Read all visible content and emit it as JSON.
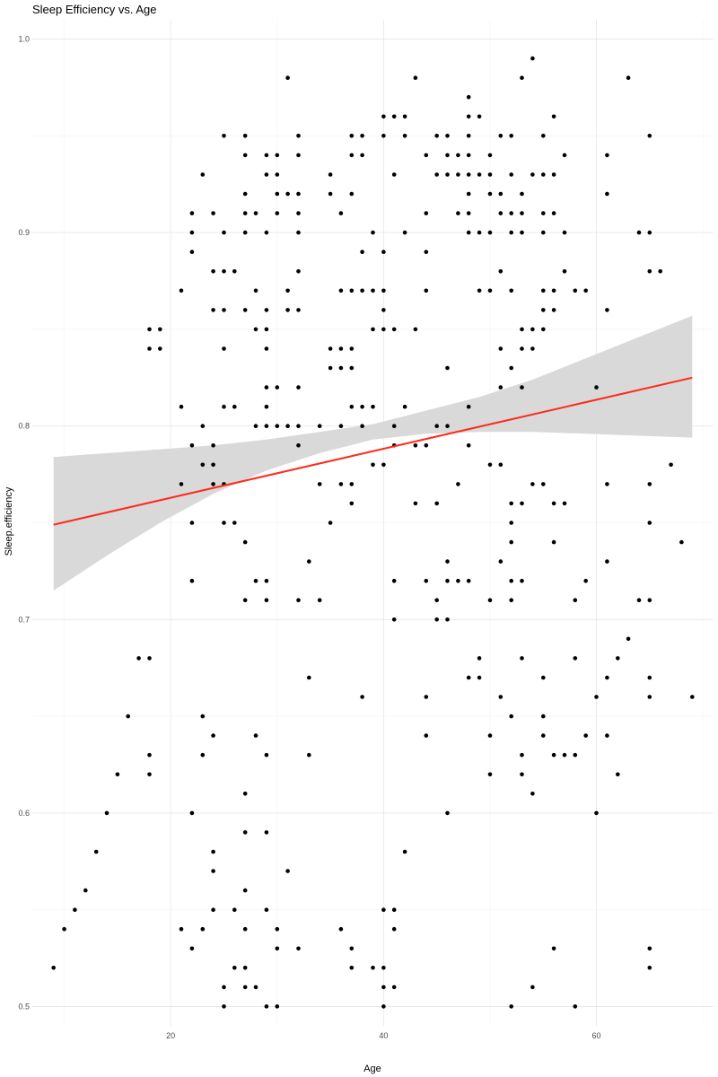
{
  "chart_data": {
    "type": "scatter",
    "title": "Sleep Efficiency vs. Age",
    "xlabel": "Age",
    "ylabel": "Sleep.efficiency",
    "xlim": [
      7.0,
      71.0
    ],
    "ylim": [
      0.49,
      1.01
    ],
    "x_ticks": [
      20,
      40,
      60
    ],
    "y_ticks": [
      0.5,
      0.6,
      0.7,
      0.8,
      0.9,
      1.0
    ],
    "x_tick_labels": [
      "20",
      "40",
      "60"
    ],
    "y_tick_labels": [
      "0.5",
      "0.6",
      "0.7",
      "0.8",
      "0.9",
      "1.0"
    ],
    "grid": true,
    "legend": "none",
    "colors": {
      "points": "#000000",
      "trend": "#ff2a1a",
      "band": "#d9d9d9"
    },
    "trend_line": {
      "type": "linear",
      "x": [
        9,
        69
      ],
      "y": [
        0.749,
        0.825
      ]
    },
    "confidence_band": {
      "x": [
        9,
        14,
        19,
        24,
        29,
        34,
        39,
        44,
        49,
        54,
        59,
        64,
        69
      ],
      "lower": [
        0.715,
        0.733,
        0.75,
        0.765,
        0.777,
        0.786,
        0.793,
        0.796,
        0.797,
        0.797,
        0.796,
        0.795,
        0.794
      ],
      "upper": [
        0.784,
        0.786,
        0.788,
        0.79,
        0.793,
        0.797,
        0.801,
        0.808,
        0.815,
        0.824,
        0.835,
        0.846,
        0.857
      ]
    },
    "points": [
      [
        9,
        0.52
      ],
      [
        10,
        0.54
      ],
      [
        11,
        0.55
      ],
      [
        12,
        0.56
      ],
      [
        13,
        0.58
      ],
      [
        14,
        0.6
      ],
      [
        15,
        0.62
      ],
      [
        16,
        0.65
      ],
      [
        17,
        0.68
      ],
      [
        18,
        0.68
      ],
      [
        18,
        0.63
      ],
      [
        18,
        0.62
      ],
      [
        18,
        0.84
      ],
      [
        18,
        0.85
      ],
      [
        19,
        0.84
      ],
      [
        19,
        0.85
      ],
      [
        21,
        0.87
      ],
      [
        21,
        0.81
      ],
      [
        21,
        0.77
      ],
      [
        21,
        0.54
      ],
      [
        22,
        0.91
      ],
      [
        22,
        0.9
      ],
      [
        22,
        0.89
      ],
      [
        22,
        0.79
      ],
      [
        22,
        0.75
      ],
      [
        22,
        0.72
      ],
      [
        22,
        0.6
      ],
      [
        22,
        0.53
      ],
      [
        23,
        0.93
      ],
      [
        23,
        0.8
      ],
      [
        23,
        0.78
      ],
      [
        23,
        0.65
      ],
      [
        23,
        0.63
      ],
      [
        23,
        0.54
      ],
      [
        24,
        0.91
      ],
      [
        24,
        0.88
      ],
      [
        24,
        0.86
      ],
      [
        24,
        0.79
      ],
      [
        24,
        0.78
      ],
      [
        24,
        0.77
      ],
      [
        24,
        0.64
      ],
      [
        24,
        0.58
      ],
      [
        24,
        0.57
      ],
      [
        24,
        0.55
      ],
      [
        25,
        0.95
      ],
      [
        25,
        0.9
      ],
      [
        25,
        0.88
      ],
      [
        25,
        0.86
      ],
      [
        25,
        0.84
      ],
      [
        25,
        0.81
      ],
      [
        25,
        0.77
      ],
      [
        25,
        0.75
      ],
      [
        25,
        0.51
      ],
      [
        25,
        0.5
      ],
      [
        26,
        0.88
      ],
      [
        26,
        0.81
      ],
      [
        26,
        0.75
      ],
      [
        26,
        0.55
      ],
      [
        26,
        0.52
      ],
      [
        27,
        0.95
      ],
      [
        27,
        0.94
      ],
      [
        27,
        0.92
      ],
      [
        27,
        0.91
      ],
      [
        27,
        0.9
      ],
      [
        27,
        0.86
      ],
      [
        27,
        0.74
      ],
      [
        27,
        0.71
      ],
      [
        27,
        0.61
      ],
      [
        27,
        0.59
      ],
      [
        27,
        0.56
      ],
      [
        27,
        0.54
      ],
      [
        27,
        0.52
      ],
      [
        27,
        0.51
      ],
      [
        28,
        0.91
      ],
      [
        28,
        0.87
      ],
      [
        28,
        0.85
      ],
      [
        28,
        0.8
      ],
      [
        28,
        0.72
      ],
      [
        28,
        0.64
      ],
      [
        28,
        0.51
      ],
      [
        29,
        0.94
      ],
      [
        29,
        0.93
      ],
      [
        29,
        0.9
      ],
      [
        29,
        0.86
      ],
      [
        29,
        0.85
      ],
      [
        29,
        0.84
      ],
      [
        29,
        0.82
      ],
      [
        29,
        0.81
      ],
      [
        29,
        0.8
      ],
      [
        29,
        0.72
      ],
      [
        29,
        0.71
      ],
      [
        29,
        0.63
      ],
      [
        29,
        0.59
      ],
      [
        29,
        0.55
      ],
      [
        29,
        0.5
      ],
      [
        30,
        0.94
      ],
      [
        30,
        0.93
      ],
      [
        30,
        0.92
      ],
      [
        30,
        0.91
      ],
      [
        30,
        0.82
      ],
      [
        30,
        0.8
      ],
      [
        30,
        0.54
      ],
      [
        30,
        0.53
      ],
      [
        30,
        0.5
      ],
      [
        31,
        0.98
      ],
      [
        31,
        0.92
      ],
      [
        31,
        0.87
      ],
      [
        31,
        0.86
      ],
      [
        31,
        0.8
      ],
      [
        31,
        0.57
      ],
      [
        32,
        0.95
      ],
      [
        32,
        0.94
      ],
      [
        32,
        0.92
      ],
      [
        32,
        0.91
      ],
      [
        32,
        0.9
      ],
      [
        32,
        0.88
      ],
      [
        32,
        0.86
      ],
      [
        32,
        0.82
      ],
      [
        32,
        0.8
      ],
      [
        32,
        0.79
      ],
      [
        32,
        0.71
      ],
      [
        32,
        0.53
      ],
      [
        33,
        0.73
      ],
      [
        33,
        0.67
      ],
      [
        33,
        0.63
      ],
      [
        34,
        0.8
      ],
      [
        34,
        0.77
      ],
      [
        34,
        0.71
      ],
      [
        35,
        0.93
      ],
      [
        35,
        0.92
      ],
      [
        35,
        0.84
      ],
      [
        35,
        0.83
      ],
      [
        35,
        0.75
      ],
      [
        36,
        0.91
      ],
      [
        36,
        0.87
      ],
      [
        36,
        0.84
      ],
      [
        36,
        0.83
      ],
      [
        36,
        0.8
      ],
      [
        36,
        0.77
      ],
      [
        36,
        0.54
      ],
      [
        37,
        0.95
      ],
      [
        37,
        0.94
      ],
      [
        37,
        0.92
      ],
      [
        37,
        0.87
      ],
      [
        37,
        0.84
      ],
      [
        37,
        0.83
      ],
      [
        37,
        0.81
      ],
      [
        37,
        0.77
      ],
      [
        37,
        0.76
      ],
      [
        37,
        0.53
      ],
      [
        37,
        0.52
      ],
      [
        38,
        0.95
      ],
      [
        38,
        0.94
      ],
      [
        38,
        0.89
      ],
      [
        38,
        0.87
      ],
      [
        38,
        0.81
      ],
      [
        38,
        0.8
      ],
      [
        38,
        0.66
      ],
      [
        39,
        0.9
      ],
      [
        39,
        0.87
      ],
      [
        39,
        0.85
      ],
      [
        39,
        0.81
      ],
      [
        39,
        0.78
      ],
      [
        39,
        0.52
      ],
      [
        40,
        0.96
      ],
      [
        40,
        0.95
      ],
      [
        40,
        0.89
      ],
      [
        40,
        0.87
      ],
      [
        40,
        0.86
      ],
      [
        40,
        0.85
      ],
      [
        40,
        0.78
      ],
      [
        40,
        0.55
      ],
      [
        40,
        0.52
      ],
      [
        40,
        0.51
      ],
      [
        40,
        0.5
      ],
      [
        41,
        0.96
      ],
      [
        41,
        0.93
      ],
      [
        41,
        0.85
      ],
      [
        41,
        0.8
      ],
      [
        41,
        0.79
      ],
      [
        41,
        0.72
      ],
      [
        41,
        0.7
      ],
      [
        41,
        0.55
      ],
      [
        41,
        0.54
      ],
      [
        41,
        0.51
      ],
      [
        42,
        0.96
      ],
      [
        42,
        0.95
      ],
      [
        42,
        0.9
      ],
      [
        42,
        0.81
      ],
      [
        42,
        0.58
      ],
      [
        43,
        0.98
      ],
      [
        43,
        0.85
      ],
      [
        43,
        0.79
      ],
      [
        43,
        0.76
      ],
      [
        44,
        0.94
      ],
      [
        44,
        0.91
      ],
      [
        44,
        0.89
      ],
      [
        44,
        0.87
      ],
      [
        44,
        0.79
      ],
      [
        44,
        0.72
      ],
      [
        44,
        0.66
      ],
      [
        44,
        0.64
      ],
      [
        45,
        0.95
      ],
      [
        45,
        0.93
      ],
      [
        45,
        0.8
      ],
      [
        45,
        0.76
      ],
      [
        45,
        0.71
      ],
      [
        45,
        0.7
      ],
      [
        46,
        0.95
      ],
      [
        46,
        0.94
      ],
      [
        46,
        0.93
      ],
      [
        46,
        0.83
      ],
      [
        46,
        0.8
      ],
      [
        46,
        0.73
      ],
      [
        46,
        0.72
      ],
      [
        46,
        0.7
      ],
      [
        46,
        0.6
      ],
      [
        47,
        0.94
      ],
      [
        47,
        0.93
      ],
      [
        47,
        0.91
      ],
      [
        47,
        0.77
      ],
      [
        47,
        0.72
      ],
      [
        48,
        0.97
      ],
      [
        48,
        0.96
      ],
      [
        48,
        0.95
      ],
      [
        48,
        0.94
      ],
      [
        48,
        0.93
      ],
      [
        48,
        0.92
      ],
      [
        48,
        0.91
      ],
      [
        48,
        0.9
      ],
      [
        48,
        0.81
      ],
      [
        48,
        0.79
      ],
      [
        48,
        0.72
      ],
      [
        48,
        0.67
      ],
      [
        49,
        0.96
      ],
      [
        49,
        0.93
      ],
      [
        49,
        0.9
      ],
      [
        49,
        0.87
      ],
      [
        49,
        0.68
      ],
      [
        49,
        0.67
      ],
      [
        50,
        0.94
      ],
      [
        50,
        0.93
      ],
      [
        50,
        0.92
      ],
      [
        50,
        0.9
      ],
      [
        50,
        0.87
      ],
      [
        50,
        0.78
      ],
      [
        50,
        0.71
      ],
      [
        50,
        0.64
      ],
      [
        50,
        0.62
      ],
      [
        51,
        0.95
      ],
      [
        51,
        0.92
      ],
      [
        51,
        0.91
      ],
      [
        51,
        0.88
      ],
      [
        51,
        0.84
      ],
      [
        51,
        0.82
      ],
      [
        51,
        0.78
      ],
      [
        51,
        0.73
      ],
      [
        51,
        0.66
      ],
      [
        52,
        0.95
      ],
      [
        52,
        0.93
      ],
      [
        52,
        0.91
      ],
      [
        52,
        0.9
      ],
      [
        52,
        0.87
      ],
      [
        52,
        0.83
      ],
      [
        52,
        0.76
      ],
      [
        52,
        0.75
      ],
      [
        52,
        0.74
      ],
      [
        52,
        0.72
      ],
      [
        52,
        0.71
      ],
      [
        52,
        0.65
      ],
      [
        52,
        0.5
      ],
      [
        53,
        0.98
      ],
      [
        53,
        0.92
      ],
      [
        53,
        0.91
      ],
      [
        53,
        0.9
      ],
      [
        53,
        0.85
      ],
      [
        53,
        0.84
      ],
      [
        53,
        0.82
      ],
      [
        53,
        0.76
      ],
      [
        53,
        0.72
      ],
      [
        53,
        0.68
      ],
      [
        53,
        0.63
      ],
      [
        53,
        0.62
      ],
      [
        54,
        0.99
      ],
      [
        54,
        0.93
      ],
      [
        54,
        0.85
      ],
      [
        54,
        0.84
      ],
      [
        54,
        0.77
      ],
      [
        54,
        0.61
      ],
      [
        54,
        0.51
      ],
      [
        55,
        0.95
      ],
      [
        55,
        0.93
      ],
      [
        55,
        0.91
      ],
      [
        55,
        0.9
      ],
      [
        55,
        0.87
      ],
      [
        55,
        0.86
      ],
      [
        55,
        0.85
      ],
      [
        55,
        0.77
      ],
      [
        55,
        0.67
      ],
      [
        55,
        0.65
      ],
      [
        55,
        0.64
      ],
      [
        56,
        0.96
      ],
      [
        56,
        0.93
      ],
      [
        56,
        0.91
      ],
      [
        56,
        0.87
      ],
      [
        56,
        0.86
      ],
      [
        56,
        0.76
      ],
      [
        56,
        0.74
      ],
      [
        56,
        0.63
      ],
      [
        56,
        0.53
      ],
      [
        57,
        0.94
      ],
      [
        57,
        0.9
      ],
      [
        57,
        0.88
      ],
      [
        57,
        0.76
      ],
      [
        57,
        0.63
      ],
      [
        58,
        0.87
      ],
      [
        58,
        0.71
      ],
      [
        58,
        0.68
      ],
      [
        58,
        0.63
      ],
      [
        58,
        0.5
      ],
      [
        59,
        0.87
      ],
      [
        59,
        0.72
      ],
      [
        59,
        0.64
      ],
      [
        60,
        0.82
      ],
      [
        60,
        0.66
      ],
      [
        60,
        0.6
      ],
      [
        61,
        0.94
      ],
      [
        61,
        0.92
      ],
      [
        61,
        0.86
      ],
      [
        61,
        0.77
      ],
      [
        61,
        0.73
      ],
      [
        61,
        0.67
      ],
      [
        61,
        0.64
      ],
      [
        62,
        0.68
      ],
      [
        62,
        0.62
      ],
      [
        63,
        0.98
      ],
      [
        63,
        0.69
      ],
      [
        64,
        0.9
      ],
      [
        64,
        0.71
      ],
      [
        65,
        0.95
      ],
      [
        65,
        0.9
      ],
      [
        65,
        0.88
      ],
      [
        65,
        0.77
      ],
      [
        65,
        0.75
      ],
      [
        65,
        0.71
      ],
      [
        65,
        0.67
      ],
      [
        65,
        0.66
      ],
      [
        65,
        0.53
      ],
      [
        65,
        0.52
      ],
      [
        66,
        0.88
      ],
      [
        67,
        0.78
      ],
      [
        68,
        0.74
      ],
      [
        69,
        0.66
      ]
    ]
  }
}
